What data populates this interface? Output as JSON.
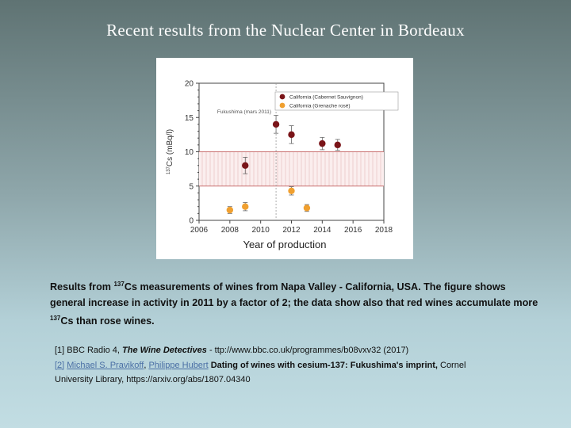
{
  "slide": {
    "title": "Recent results from the Nuclear Center in Bordeaux",
    "description": {
      "p1": "Results from ",
      "iso1": "137",
      "p2": "Cs measurements of wines from Napa Valley - California, USA. The figure shows general increase in activity in 2011 by a factor of 2; the data show also that red wines accumulate more ",
      "iso2": "137",
      "p3": "Cs than rose wines."
    },
    "references": {
      "r1_num": "[1]",
      "r1_text": " BBC Radio 4, ",
      "r1_title": "The Wine Detectives",
      "r1_rest": " - ttp://www.bbc.co.uk/programmes/b08vxv32 (2017)",
      "r2_num": "[2]",
      "r2_author1": "Michael S. Pravikoff",
      "r2_sep": ", ",
      "r2_author2": "Philippe Hubert",
      "r2_title": " Dating of wines with cesium-137: Fukushima's imprint,",
      "r2_rest1": " Cornel",
      "r2_rest2": "University Library, https://arxiv.org/abs/1807.04340"
    }
  },
  "chart_data": {
    "type": "scatter",
    "xlabel": "Year of production",
    "ylabel_sup": "137",
    "ylabel": "Cs (mBq/l)",
    "xlim": [
      2006,
      2018
    ],
    "ylim": [
      0,
      20
    ],
    "xticks": [
      2006,
      2008,
      2010,
      2012,
      2014,
      2016,
      2018
    ],
    "yticks": [
      0,
      5,
      10,
      15,
      20
    ],
    "annotation": "Fukushima (mars 2011)",
    "band": {
      "y0": 5,
      "y1": 10
    },
    "legend_position": "top-right",
    "series": [
      {
        "name": "California (Cabernet Sauvignon)",
        "color": "#7a1418",
        "points": [
          {
            "x": 2009,
            "y": 8.0,
            "err": 1.2
          },
          {
            "x": 2011,
            "y": 14.0,
            "err": 1.3
          },
          {
            "x": 2012,
            "y": 12.5,
            "err": 1.3
          },
          {
            "x": 2014,
            "y": 11.2,
            "err": 0.9
          },
          {
            "x": 2015,
            "y": 11.0,
            "err": 0.8
          }
        ]
      },
      {
        "name": "California (Grenache rosé)",
        "color": "#f0a030",
        "points": [
          {
            "x": 2008,
            "y": 1.5,
            "err": 0.5
          },
          {
            "x": 2009,
            "y": 2.0,
            "err": 0.6
          },
          {
            "x": 2012,
            "y": 4.3,
            "err": 0.6
          },
          {
            "x": 2013,
            "y": 1.8,
            "err": 0.5
          }
        ]
      }
    ]
  }
}
